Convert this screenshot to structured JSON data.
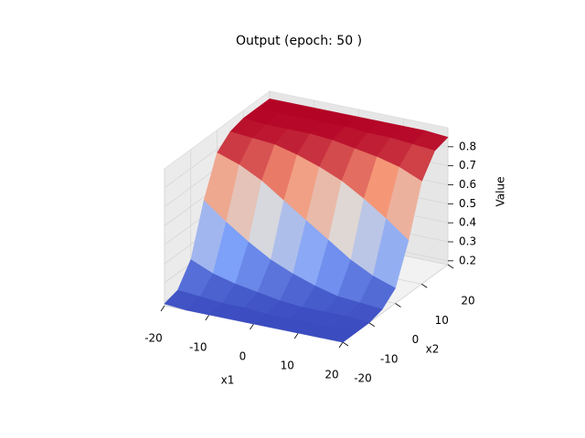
{
  "chart_data": {
    "type": "surface",
    "title": "Output (epoch: 50 )",
    "xlabel": "x1",
    "ylabel": "x2",
    "zlabel": "Value",
    "x": [
      -20,
      -15,
      -10,
      -5,
      0,
      5,
      10,
      15,
      20
    ],
    "y": [
      -20,
      -15,
      -10,
      -5,
      0,
      5,
      10,
      15,
      20
    ],
    "z": [
      [
        0.19,
        0.21,
        0.32,
        0.58,
        0.78,
        0.84,
        0.86,
        0.86,
        0.86
      ],
      [
        0.18,
        0.2,
        0.27,
        0.49,
        0.74,
        0.83,
        0.85,
        0.86,
        0.86
      ],
      [
        0.18,
        0.19,
        0.24,
        0.41,
        0.68,
        0.82,
        0.85,
        0.86,
        0.86
      ],
      [
        0.18,
        0.19,
        0.22,
        0.34,
        0.6,
        0.79,
        0.85,
        0.86,
        0.86
      ],
      [
        0.18,
        0.18,
        0.2,
        0.29,
        0.52,
        0.75,
        0.84,
        0.86,
        0.86
      ],
      [
        0.18,
        0.18,
        0.19,
        0.25,
        0.44,
        0.7,
        0.82,
        0.85,
        0.86
      ],
      [
        0.18,
        0.18,
        0.19,
        0.22,
        0.36,
        0.63,
        0.8,
        0.85,
        0.86
      ],
      [
        0.18,
        0.18,
        0.19,
        0.21,
        0.3,
        0.55,
        0.77,
        0.84,
        0.86
      ],
      [
        0.18,
        0.18,
        0.18,
        0.2,
        0.26,
        0.46,
        0.72,
        0.83,
        0.85
      ]
    ],
    "xlim": [
      -20,
      20
    ],
    "xticks": [
      -20,
      -10,
      0,
      10,
      20
    ],
    "ylim": [
      -20,
      20
    ],
    "yticks": [
      -20,
      -10,
      0,
      10,
      20
    ],
    "zlim": [
      0.18,
      0.9
    ],
    "zticks": [
      0.2,
      0.3,
      0.4,
      0.5,
      0.6,
      0.7,
      0.8
    ],
    "colormap": "coolwarm",
    "grid": true
  }
}
